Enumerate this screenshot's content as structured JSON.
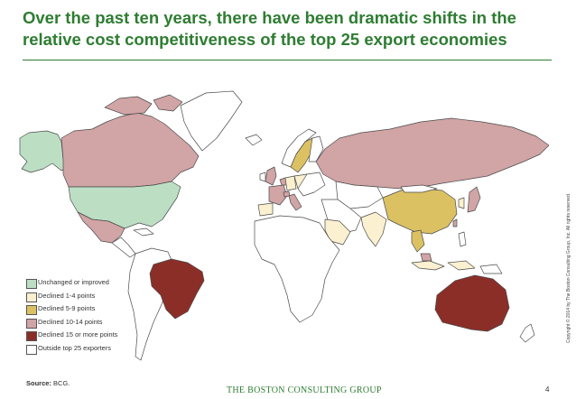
{
  "title": "Over the past ten years, there have been dramatic shifts in the relative cost competitiveness of the top 25 export economies",
  "colors": {
    "unchanged": "#bcdfc4",
    "declined_1_4": "#fbf0cf",
    "declined_5_9": "#dcc163",
    "declined_10_14": "#d1a4a5",
    "declined_15_plus": "#8c2e28",
    "outside": "#ffffff",
    "title_green": "#2e7d32"
  },
  "legend": [
    {
      "label": "Unchanged or improved",
      "color_key": "unchanged"
    },
    {
      "label": "Declined 1-4 points",
      "color_key": "declined_1_4"
    },
    {
      "label": "Declined 5-9 points",
      "color_key": "declined_5_9"
    },
    {
      "label": "Declined 10-14 points",
      "color_key": "declined_10_14"
    },
    {
      "label": "Declined 15 or more points",
      "color_key": "declined_15_plus"
    },
    {
      "label": "Outside top 25 exporters",
      "color_key": "outside"
    }
  ],
  "source": {
    "label": "Source:",
    "text": "BCG."
  },
  "footer_logo": "THE BOSTON CONSULTING GROUP",
  "page_number": "4",
  "copyright": "Copyright © 2014 by The Boston Consulting Group, Inc. All rights reserved."
}
